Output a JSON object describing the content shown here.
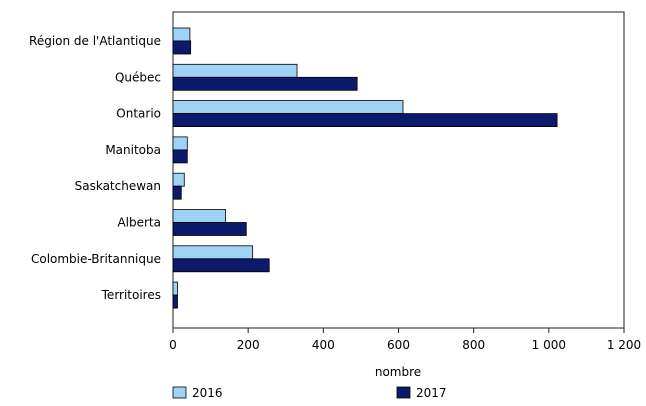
{
  "chart_data": {
    "type": "bar",
    "orientation": "horizontal",
    "title": "",
    "xlabel": "nombre",
    "ylabel": "",
    "xlim": [
      0,
      1200
    ],
    "xticks": [
      0,
      200,
      400,
      600,
      800,
      1000,
      1200
    ],
    "xtick_labels": [
      "0",
      "200",
      "400",
      "600",
      "800",
      "1 000",
      "1 200"
    ],
    "categories": [
      "Région de l'Atlantique",
      "Québec",
      "Ontario",
      "Manitoba",
      "Saskatchewan",
      "Alberta",
      "Colombie-Britannique",
      "Territoires"
    ],
    "series": [
      {
        "name": "2016",
        "color": "#9fd3f5",
        "values": [
          45,
          330,
          612,
          38,
          30,
          140,
          212,
          12
        ]
      },
      {
        "name": "2017",
        "color": "#0c1a6b",
        "values": [
          47,
          490,
          1022,
          38,
          22,
          195,
          256,
          12
        ]
      }
    ],
    "grid": false,
    "legend_position": "bottom-left"
  }
}
